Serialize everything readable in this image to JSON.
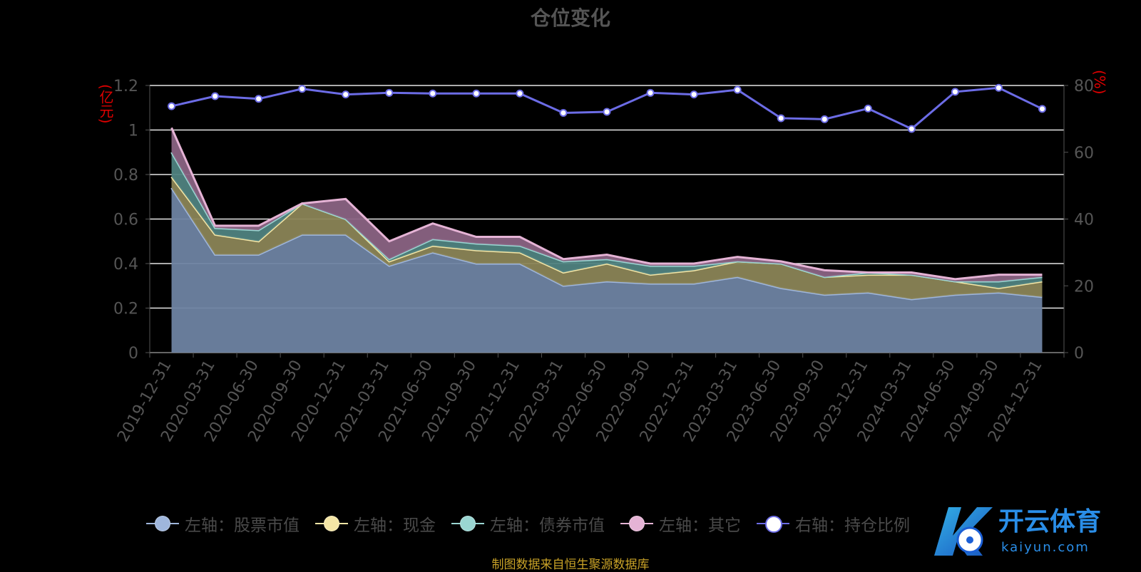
{
  "title": "仓位变化",
  "footer": "制图数据来自恒生聚源数据库",
  "left_axis_unit": "(亿元)",
  "right_axis_unit": "(%)",
  "watermark": {
    "text_cn": "开云体育",
    "text_en": "kaiyun.com"
  },
  "legend": [
    {
      "label": "左轴：股票市值",
      "color": "#9fb6dc"
    },
    {
      "label": "左轴：现金",
      "color": "#f4e6a6"
    },
    {
      "label": "左轴：债券市值",
      "color": "#9ad6d2"
    },
    {
      "label": "左轴：其它",
      "color": "#e5b3d5"
    },
    {
      "label": "右轴：持仓比例",
      "color": "#6c6ce6"
    }
  ],
  "chart_data": {
    "type": "area",
    "title": "仓位变化",
    "categories": [
      "2019-12-31",
      "2020-03-31",
      "2020-06-30",
      "2020-09-30",
      "2020-12-31",
      "2021-03-31",
      "2021-06-30",
      "2021-09-30",
      "2021-12-31",
      "2022-03-31",
      "2022-06-30",
      "2022-09-30",
      "2022-12-31",
      "2023-03-31",
      "2023-06-30",
      "2023-09-30",
      "2023-12-31",
      "2024-03-31",
      "2024-06-30",
      "2024-09-30",
      "2024-12-31"
    ],
    "left_ylim": [
      0,
      1.2
    ],
    "left_ticks": [
      0,
      0.2,
      0.4,
      0.6,
      0.8,
      1,
      1.2
    ],
    "right_ylim": [
      0,
      80
    ],
    "right_ticks": [
      0,
      20,
      40,
      60,
      80
    ],
    "stacked": true,
    "series": [
      {
        "name": "左轴：股票市值",
        "axis": "left",
        "color": "#9fb6dc",
        "fill": "#6e83a2",
        "values": [
          0.74,
          0.44,
          0.44,
          0.53,
          0.53,
          0.39,
          0.45,
          0.4,
          0.4,
          0.3,
          0.32,
          0.31,
          0.31,
          0.34,
          0.29,
          0.26,
          0.27,
          0.24,
          0.26,
          0.27,
          0.25
        ]
      },
      {
        "name": "左轴：现金",
        "axis": "left",
        "color": "#f4e6a6",
        "fill": "#8a8456",
        "values": [
          0.05,
          0.09,
          0.06,
          0.14,
          0.07,
          0.02,
          0.03,
          0.06,
          0.05,
          0.06,
          0.08,
          0.04,
          0.06,
          0.07,
          0.11,
          0.08,
          0.08,
          0.11,
          0.06,
          0.02,
          0.07
        ]
      },
      {
        "name": "左轴：债券市值",
        "axis": "left",
        "color": "#9ad6d2",
        "fill": "#4f8280",
        "values": [
          0.11,
          0.03,
          0.05,
          0.0,
          0.0,
          0.01,
          0.03,
          0.03,
          0.03,
          0.05,
          0.02,
          0.04,
          0.02,
          0.0,
          0.0,
          0.0,
          0.01,
          0.0,
          0.0,
          0.03,
          0.02
        ]
      },
      {
        "name": "左轴：其它",
        "axis": "left",
        "color": "#e5b3d5",
        "fill": "#8a6383",
        "values": [
          0.11,
          0.01,
          0.02,
          0.0,
          0.09,
          0.08,
          0.07,
          0.03,
          0.04,
          0.01,
          0.02,
          0.01,
          0.01,
          0.02,
          0.01,
          0.03,
          0.0,
          0.01,
          0.01,
          0.03,
          0.01
        ]
      },
      {
        "name": "右轴：持仓比例",
        "axis": "right",
        "type": "line",
        "color": "#6c6ce6",
        "values": [
          73.8,
          76.8,
          76.0,
          79.0,
          77.3,
          77.8,
          77.6,
          77.6,
          77.6,
          71.8,
          72.1,
          77.8,
          77.3,
          78.7,
          70.2,
          69.9,
          73.1,
          67.0,
          78.1,
          79.3,
          73.0
        ]
      }
    ]
  }
}
